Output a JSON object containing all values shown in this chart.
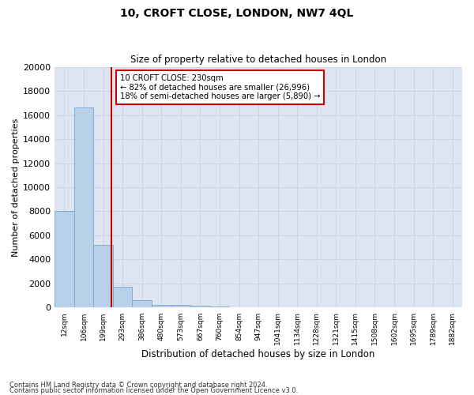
{
  "title": "10, CROFT CLOSE, LONDON, NW7 4QL",
  "subtitle": "Size of property relative to detached houses in London",
  "xlabel": "Distribution of detached houses by size in London",
  "ylabel": "Number of detached properties",
  "bar_values": [
    8050,
    16600,
    5200,
    1750,
    600,
    250,
    200,
    130,
    100,
    0,
    0,
    0,
    0,
    0,
    0,
    0,
    0,
    0,
    0,
    0,
    0
  ],
  "bar_labels": [
    "12sqm",
    "106sqm",
    "199sqm",
    "293sqm",
    "386sqm",
    "480sqm",
    "573sqm",
    "667sqm",
    "760sqm",
    "854sqm",
    "947sqm",
    "1041sqm",
    "1134sqm",
    "1228sqm",
    "1321sqm",
    "1415sqm",
    "1508sqm",
    "1602sqm",
    "1695sqm",
    "1789sqm",
    "1882sqm"
  ],
  "bar_color": "#b8cfe8",
  "bar_edgecolor": "#7aaad0",
  "ylim": [
    0,
    20000
  ],
  "yticks": [
    0,
    2000,
    4000,
    6000,
    8000,
    10000,
    12000,
    14000,
    16000,
    18000,
    20000
  ],
  "vline_x_idx": 2.43,
  "vline_color": "#cc0000",
  "annotation_title": "10 CROFT CLOSE: 230sqm",
  "annotation_line1": "← 82% of detached houses are smaller (26,996)",
  "annotation_line2": "18% of semi-detached houses are larger (5,890) →",
  "annotation_box_color": "#cc0000",
  "grid_color": "#ccd5e8",
  "background_color": "#dde5f0",
  "footer_line1": "Contains HM Land Registry data © Crown copyright and database right 2024.",
  "footer_line2": "Contains public sector information licensed under the Open Government Licence v3.0."
}
